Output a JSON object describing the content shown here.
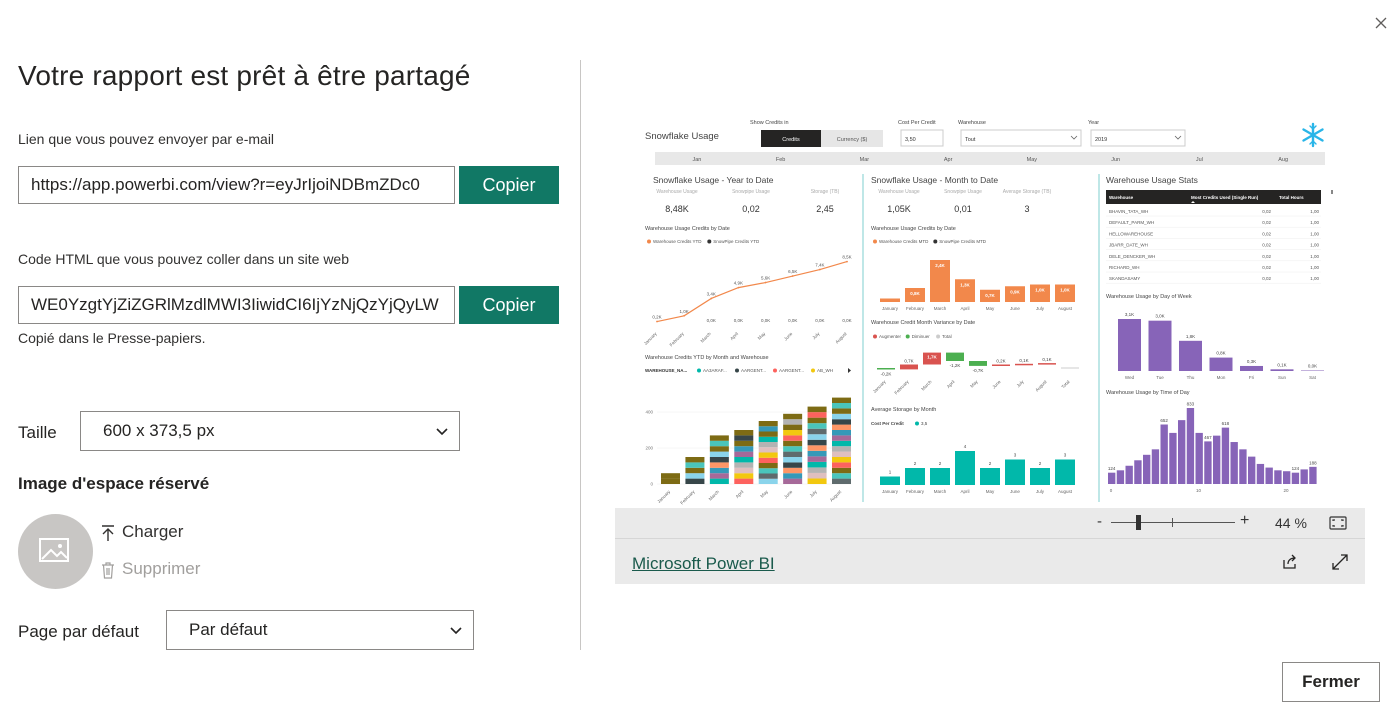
{
  "dialog": {
    "title": "Votre rapport est prêt à être partagé",
    "close_icon": "close-icon"
  },
  "email_link": {
    "label": "Lien que vous pouvez envoyer par e-mail",
    "value": "https://app.powerbi.com/view?r=eyJrIjoiNDBmZDc0",
    "copy_label": "Copier"
  },
  "html_code": {
    "label": "Code HTML que vous pouvez coller dans un site web",
    "value": "WE0YzgtYjZiZGRlMzdlMWI3IiwidCI6IjYzNjQzYjQyLW",
    "copy_label": "Copier",
    "copied_message": "Copié dans le Presse-papiers."
  },
  "size": {
    "label": "Taille",
    "selected": "600 x 373,5 px"
  },
  "placeholder_image": {
    "heading": "Image d'espace réservé",
    "upload_label": "Charger",
    "delete_label": "Supprimer"
  },
  "default_page": {
    "label": "Page par défaut",
    "selected": "Par défaut"
  },
  "preview": {
    "zoom_minus": "-",
    "zoom_plus": "+",
    "zoom_value": "44 %",
    "zoom_level_percent": 44,
    "footer_link": "Microsoft Power BI",
    "report": {
      "title": "Snowflake Usage",
      "show_credits_label": "Show Credits in",
      "credits_btn": "Credits",
      "currency_btn": "Currency ($)",
      "cost_label": "Cost Per Credit",
      "cost_value": "3,50",
      "warehouse_label": "Warehouse",
      "warehouse_value": "Tout",
      "year_label": "Year",
      "year_value": "2019",
      "months": [
        "Jan",
        "Feb",
        "Mar",
        "Apr",
        "May",
        "Jun",
        "Jul",
        "Aug"
      ],
      "ytd": {
        "title": "Snowflake Usage - Year to Date",
        "kpi_labels": [
          "Warehouse Usage",
          "Snowpipe Usage",
          "Storage (TB)"
        ],
        "kpi_values": [
          "8,48K",
          "0,02",
          "2,45"
        ],
        "chart_title": "Warehouse Usage Credits by Date",
        "legend": [
          "Warehouse Credits YTD",
          "SnowPipe Credits YTD"
        ]
      },
      "mtd": {
        "title": "Snowflake Usage - Month to Date",
        "kpi_labels": [
          "Warehouse Usage",
          "Snowpipe Usage",
          "Average Storage (TB)"
        ],
        "kpi_values": [
          "1,05K",
          "0,01",
          "3"
        ],
        "chart_title": "Warehouse Usage Credits by Date",
        "legend": [
          "Warehouse Credits MTD",
          "SnowPipe Credits MTD"
        ],
        "variance_title": "Warehouse Credit Month Variance by Date",
        "variance_legend": [
          "Augmenter",
          "Diminuer",
          "Total"
        ],
        "storage_title": "Average Storage by Month",
        "storage_legend_label": "Cost Per Credit",
        "storage_legend_value": "3,5"
      },
      "stacked": {
        "title": "Warehouse Credits YTD by Month and Warehouse",
        "legend_label": "WAREHOUSE_NA...",
        "legend": [
          "AA3ARAF...",
          "AARGENT...",
          "AARGENT...",
          "AB_WH"
        ],
        "yticks": [
          "400",
          "200",
          "0"
        ]
      },
      "stats": {
        "title": "Warehouse Usage Stats",
        "headers": [
          "Warehouse",
          "Most Credits Used (Single Run)",
          "Total Hours"
        ],
        "rows": [
          [
            "BHAVIN_TATA_WH",
            "0,02",
            "1,00"
          ],
          [
            "DEFAULT_PARM_WH",
            "0,02",
            "1,00"
          ],
          [
            "HELLOWAREHOUSE",
            "0,02",
            "1,00"
          ],
          [
            "JBARR_DATE_WH",
            "0,02",
            "1,00"
          ],
          [
            "DELE_DENCKER_WH",
            "0,02",
            "1,00"
          ],
          [
            "RICHARD_WH",
            "0,02",
            "1,00"
          ],
          [
            "SKANDASAMY",
            "0,02",
            "1,00"
          ]
        ],
        "day_title": "Warehouse Usage by Day of Week",
        "time_title": "Warehouse Usage by Time of Day"
      }
    }
  },
  "close_button": "Fermer",
  "chart_data": [
    {
      "type": "line",
      "title": "Warehouse Usage Credits by Date",
      "categories": [
        "January",
        "February",
        "March",
        "April",
        "May",
        "June",
        "July",
        "August"
      ],
      "series": [
        {
          "name": "Warehouse Credits YTD",
          "values": [
            0.2,
            1.0,
            3.4,
            4.9,
            5.6,
            6.5,
            7.4,
            8.5
          ]
        },
        {
          "name": "SnowPipe Credits YTD",
          "values": [
            0.0,
            0.0,
            0.0,
            0.0,
            0.0,
            0.0,
            0.0,
            0.0
          ]
        }
      ],
      "labels": [
        "0,2K",
        "1,0K",
        "3,4K",
        "4,9K",
        "5,6K",
        "6,5K",
        "7,4K",
        "8,5K"
      ],
      "labels_secondary": [
        "0,0K",
        "0,0K",
        "0,0K",
        "0,0K",
        "0,0K",
        "0,0K"
      ]
    },
    {
      "type": "bar",
      "title": "Warehouse Usage Credits by Date",
      "categories": [
        "January",
        "February",
        "March",
        "April",
        "May",
        "June",
        "July",
        "August"
      ],
      "values": [
        0.2,
        0.8,
        2.4,
        1.3,
        0.7,
        0.9,
        1.0,
        1.0
      ],
      "labels": [
        "",
        "0,8K",
        "2,4K",
        "1,3K",
        "0,7K",
        "0,9K",
        "1,0K",
        "1,0K"
      ]
    },
    {
      "type": "bar",
      "title": "Warehouse Credit Month Variance by Date",
      "categories": [
        "January",
        "February",
        "March",
        "April",
        "May",
        "June",
        "July",
        "August",
        "Total"
      ],
      "values": [
        -0.2,
        0.7,
        1.7,
        -1.2,
        -0.7,
        0.2,
        0.1,
        0.1,
        0
      ],
      "labels": [
        "-0,2K",
        "0,7K",
        "1,7K",
        "-1,2K",
        "-0,7K",
        "0,2K",
        "0,1K",
        "0,1K"
      ]
    },
    {
      "type": "bar",
      "title": "Average Storage by Month",
      "categories": [
        "January",
        "February",
        "March",
        "April",
        "May",
        "June",
        "July",
        "August"
      ],
      "values": [
        1,
        2,
        2,
        4,
        2,
        3,
        2,
        3
      ],
      "labels": [
        "1",
        "2",
        "2",
        "4",
        "2",
        "3",
        "2",
        "3"
      ]
    },
    {
      "type": "bar",
      "title": "Warehouse Credits YTD by Month and Warehouse",
      "categories": [
        "January",
        "February",
        "March",
        "April",
        "May",
        "June",
        "July",
        "August"
      ],
      "values": [
        60,
        150,
        270,
        300,
        350,
        390,
        430,
        480
      ],
      "ylim": [
        0,
        500
      ]
    },
    {
      "type": "bar",
      "title": "Warehouse Usage by Day of Week",
      "categories": [
        "Wed",
        "Tue",
        "Thu",
        "Mon",
        "Fri",
        "Sun",
        "Sat"
      ],
      "values": [
        3.1,
        3.0,
        1.8,
        0.8,
        0.3,
        0.1,
        0.0
      ],
      "labels": [
        "3,1K",
        "3,0K",
        "1,8K",
        "0,8K",
        "0,3K",
        "0,1K",
        "0,0K"
      ]
    },
    {
      "type": "bar",
      "title": "Warehouse Usage by Time of Day",
      "categories": [
        "0",
        "1",
        "2",
        "3",
        "4",
        "5",
        "6",
        "7",
        "8",
        "9",
        "10",
        "11",
        "12",
        "13",
        "14",
        "15",
        "16",
        "17",
        "18",
        "19",
        "20",
        "21",
        "22",
        "23"
      ],
      "values": [
        124,
        150,
        200,
        260,
        320,
        380,
        652,
        560,
        700,
        833,
        560,
        467,
        530,
        618,
        460,
        380,
        300,
        220,
        180,
        150,
        140,
        124,
        160,
        188
      ],
      "labels": [
        "124",
        "652",
        "833",
        "467",
        "618",
        "124",
        "188"
      ],
      "xticks": [
        "0",
        "10",
        "20"
      ]
    }
  ]
}
